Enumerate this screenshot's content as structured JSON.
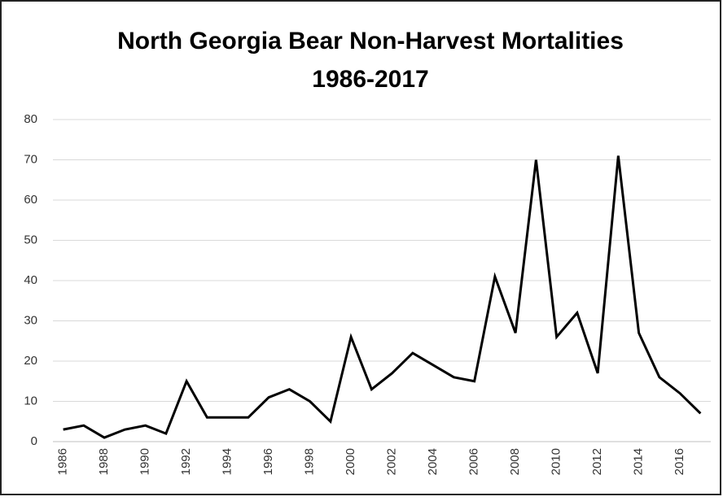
{
  "chart_data": {
    "type": "line",
    "title": [
      "North Georgia Bear Non-Harvest Mortalities",
      "1986-2017"
    ],
    "categories": [
      "1986",
      null,
      "1988",
      null,
      "1990",
      null,
      "1992",
      null,
      "1994",
      null,
      "1996",
      null,
      "1998",
      null,
      "2000",
      null,
      "2002",
      null,
      "2004",
      null,
      "2006",
      null,
      "2008",
      null,
      "2010",
      null,
      "2012",
      null,
      "2014",
      null,
      "2016",
      null
    ],
    "values": [
      3,
      4,
      1,
      3,
      4,
      2,
      15,
      6,
      6,
      6,
      11,
      13,
      10,
      5,
      26,
      13,
      17,
      22,
      19,
      16,
      15,
      41,
      27,
      70,
      26,
      32,
      17,
      71,
      27,
      16,
      12,
      7
    ],
    "color": "#000000",
    "ylim": [
      0,
      80
    ],
    "yticks": [
      0,
      10,
      20,
      30,
      40,
      50,
      60,
      70,
      80
    ],
    "grid": true
  }
}
